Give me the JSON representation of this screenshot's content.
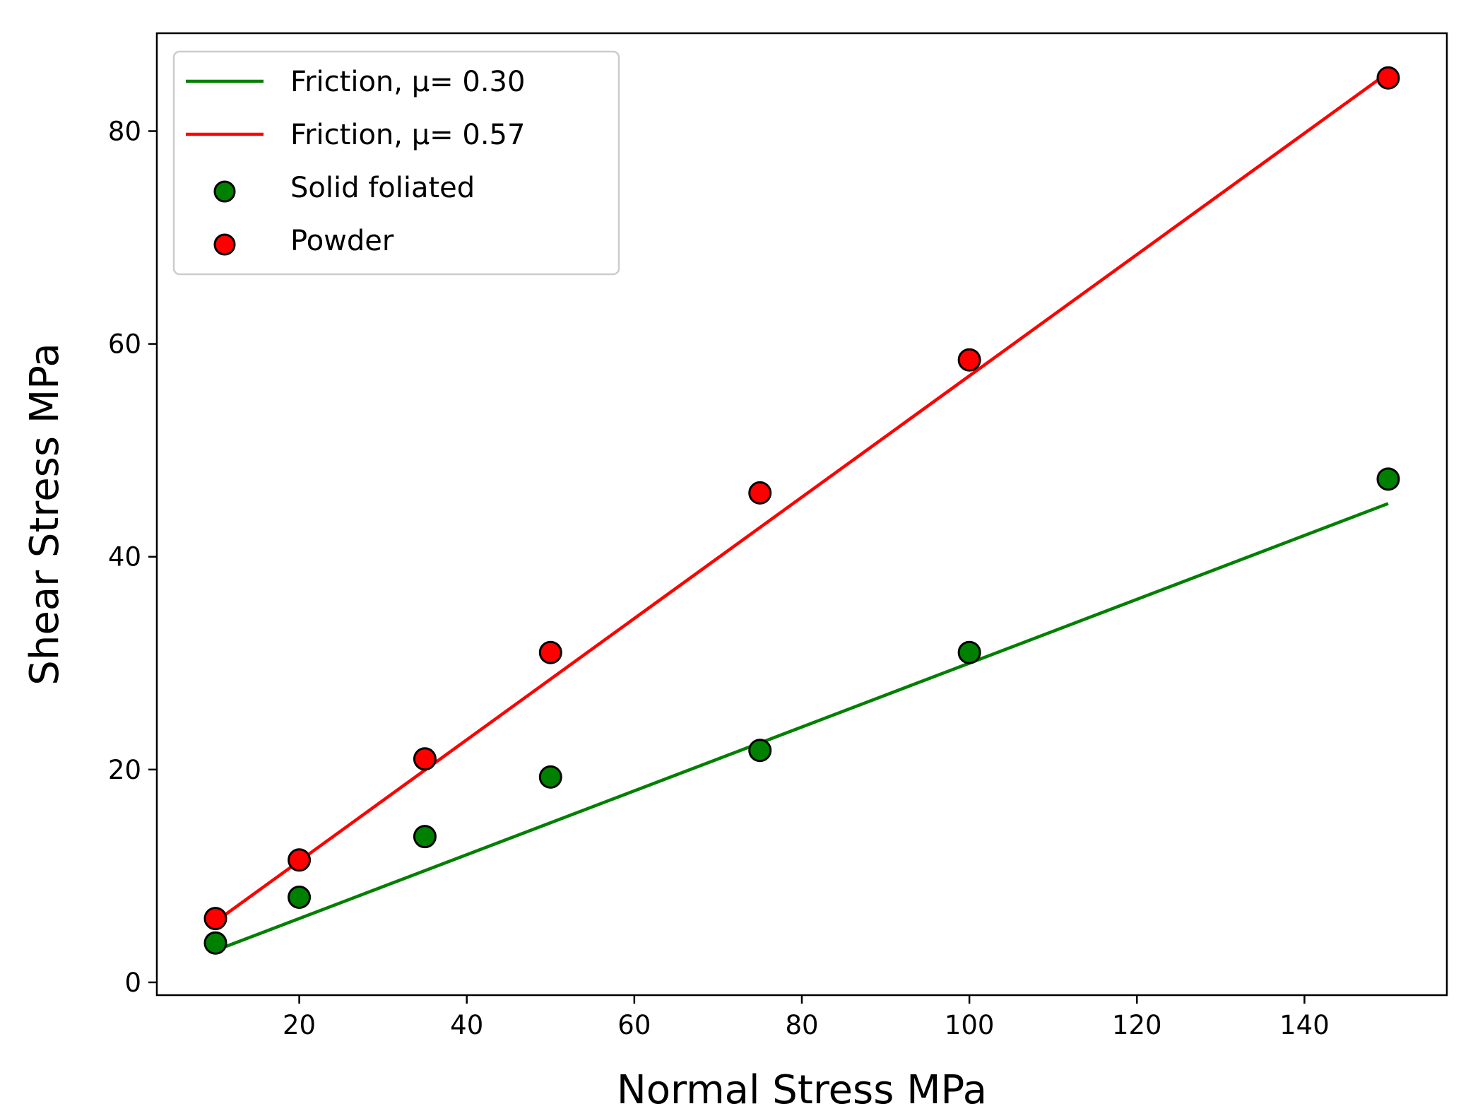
{
  "chart_data": {
    "type": "scatter",
    "xlabel": "Normal Stress MPa",
    "ylabel": "Shear Stress MPa",
    "xlim": [
      3,
      157
    ],
    "ylim": [
      -1.2,
      89.2
    ],
    "xticks": [
      20,
      40,
      60,
      80,
      100,
      120,
      140
    ],
    "yticks": [
      0,
      20,
      40,
      60,
      80
    ],
    "grid": false,
    "legend_position": "top-left",
    "series": [
      {
        "name": "Friction, μ= 0.30",
        "kind": "line",
        "color": "#008000",
        "x": [
          10,
          150
        ],
        "y": [
          3.0,
          45.0
        ]
      },
      {
        "name": "Friction, μ= 0.57",
        "kind": "line",
        "color": "#ff0000",
        "x": [
          10,
          150
        ],
        "y": [
          5.7,
          85.5
        ]
      },
      {
        "name": "Solid foliated",
        "kind": "scatter",
        "color": "#008000",
        "x": [
          10,
          20,
          35,
          50,
          75,
          100,
          150
        ],
        "y": [
          3.7,
          8.0,
          13.7,
          19.3,
          21.8,
          31.0,
          47.3
        ]
      },
      {
        "name": "Powder",
        "kind": "scatter",
        "color": "#ff0000",
        "x": [
          10,
          20,
          35,
          50,
          75,
          100,
          150
        ],
        "y": [
          6.0,
          11.5,
          21.0,
          31.0,
          46.0,
          58.5,
          85.0
        ]
      }
    ]
  }
}
